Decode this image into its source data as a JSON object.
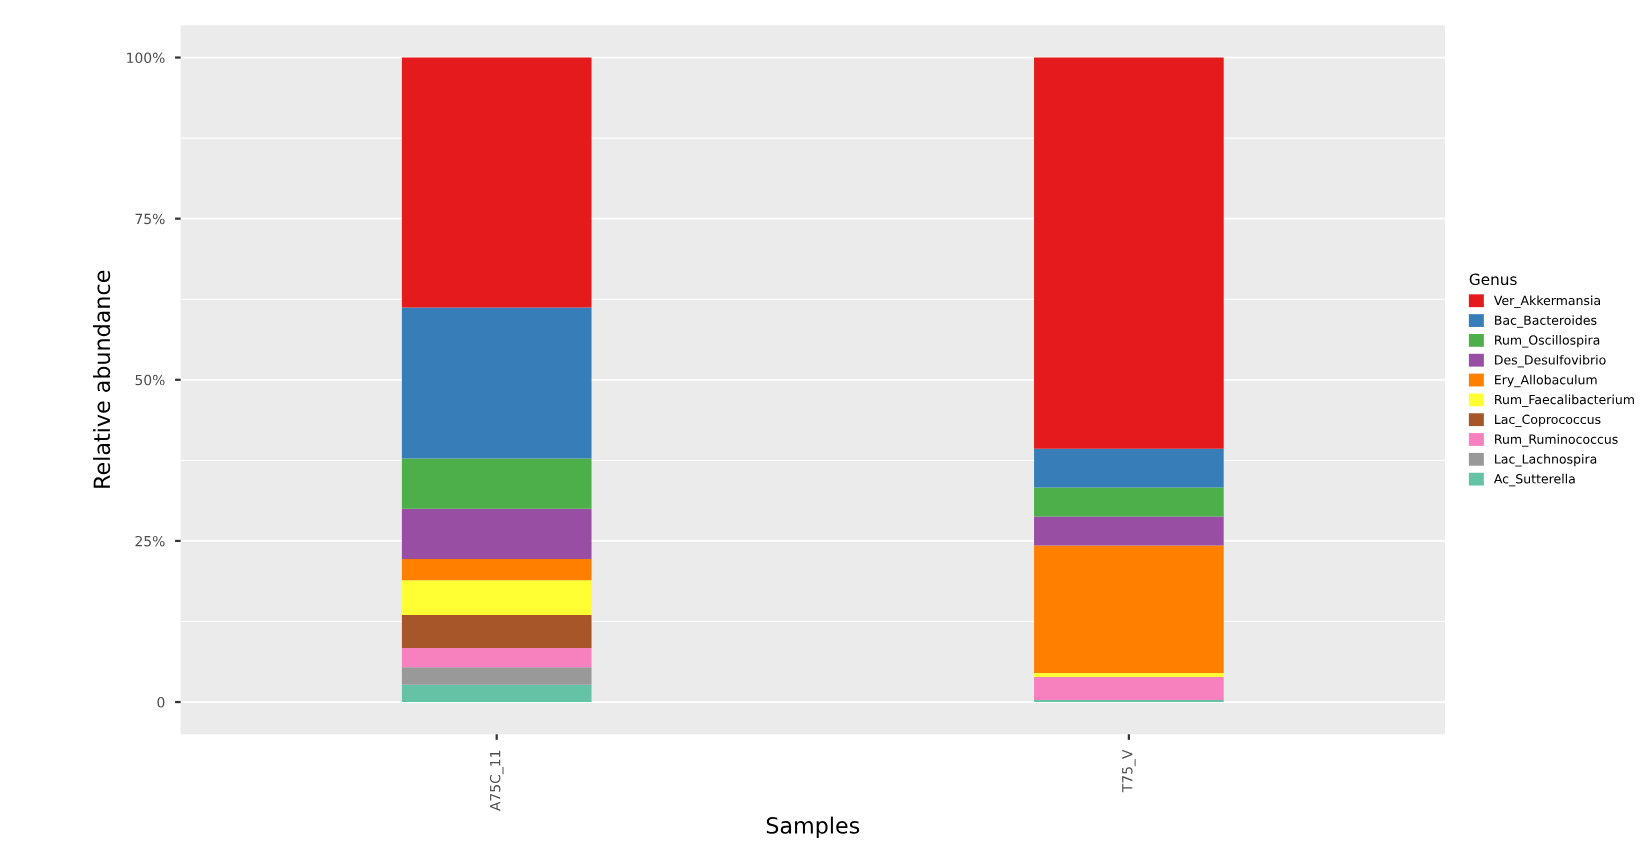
{
  "chart_data": {
    "type": "bar",
    "stacked": true,
    "xlabel": "Samples",
    "ylabel": "Relative abundance",
    "legend_title": "Genus",
    "legend": "right",
    "categories": [
      "A75C_11",
      "T75_V"
    ],
    "ylim": [
      -5,
      105
    ],
    "yticks": [
      {
        "value": 0,
        "label": "0"
      },
      {
        "value": 25,
        "label": "25%"
      },
      {
        "value": 50,
        "label": "50%"
      },
      {
        "value": 75,
        "label": "75%"
      },
      {
        "value": 100,
        "label": "100%"
      }
    ],
    "grid": "y",
    "series": [
      {
        "name": "Ac_Sutterella",
        "color": "#66c2a5",
        "values": [
          2.7,
          0.3
        ]
      },
      {
        "name": "Lac_Lachnospira",
        "color": "#999999",
        "values": [
          2.7,
          0
        ]
      },
      {
        "name": "Rum_Ruminococcus",
        "color": "#f781bf",
        "values": [
          3.0,
          3.6
        ]
      },
      {
        "name": "Lac_Coprococcus",
        "color": "#a65628",
        "values": [
          5.1,
          0
        ]
      },
      {
        "name": "Rum_Faecalibacterium",
        "color": "#ffff33",
        "values": [
          5.4,
          0.6
        ]
      },
      {
        "name": "Ery_Allobaculum",
        "color": "#ff7f00",
        "values": [
          3.3,
          19.8
        ]
      },
      {
        "name": "Des_Desulfovibrio",
        "color": "#984ea3",
        "values": [
          7.8,
          4.5
        ]
      },
      {
        "name": "Rum_Oscillospira",
        "color": "#4daf4a",
        "values": [
          7.8,
          4.5
        ]
      },
      {
        "name": "Bac_Bacteroides",
        "color": "#377eb8",
        "values": [
          23.4,
          6.0
        ]
      },
      {
        "name": "Ver_Akkermansia",
        "color": "#e41a1c",
        "values": [
          38.8,
          60.7
        ]
      }
    ]
  }
}
